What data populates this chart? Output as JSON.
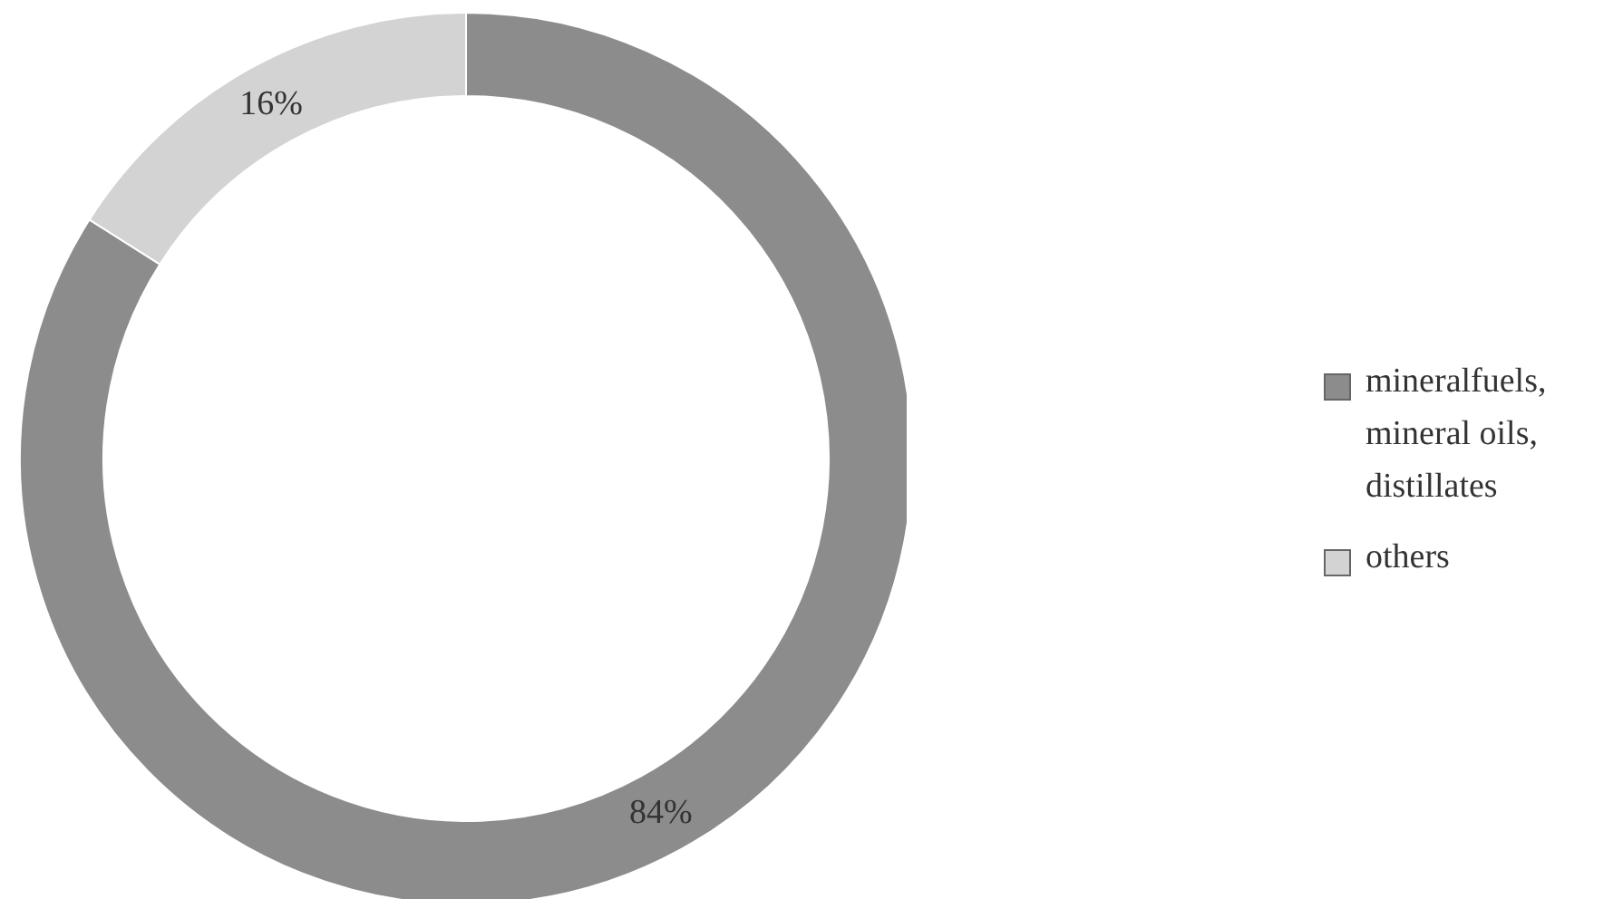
{
  "chart_data": {
    "type": "donut",
    "categories": [
      "mineralfuels, mineral oils, distillates",
      "others"
    ],
    "values": [
      84,
      16
    ],
    "colors": [
      "#8c8c8c",
      "#d3d3d3"
    ],
    "value_labels": [
      "84%",
      "16%"
    ],
    "legend": "right"
  }
}
